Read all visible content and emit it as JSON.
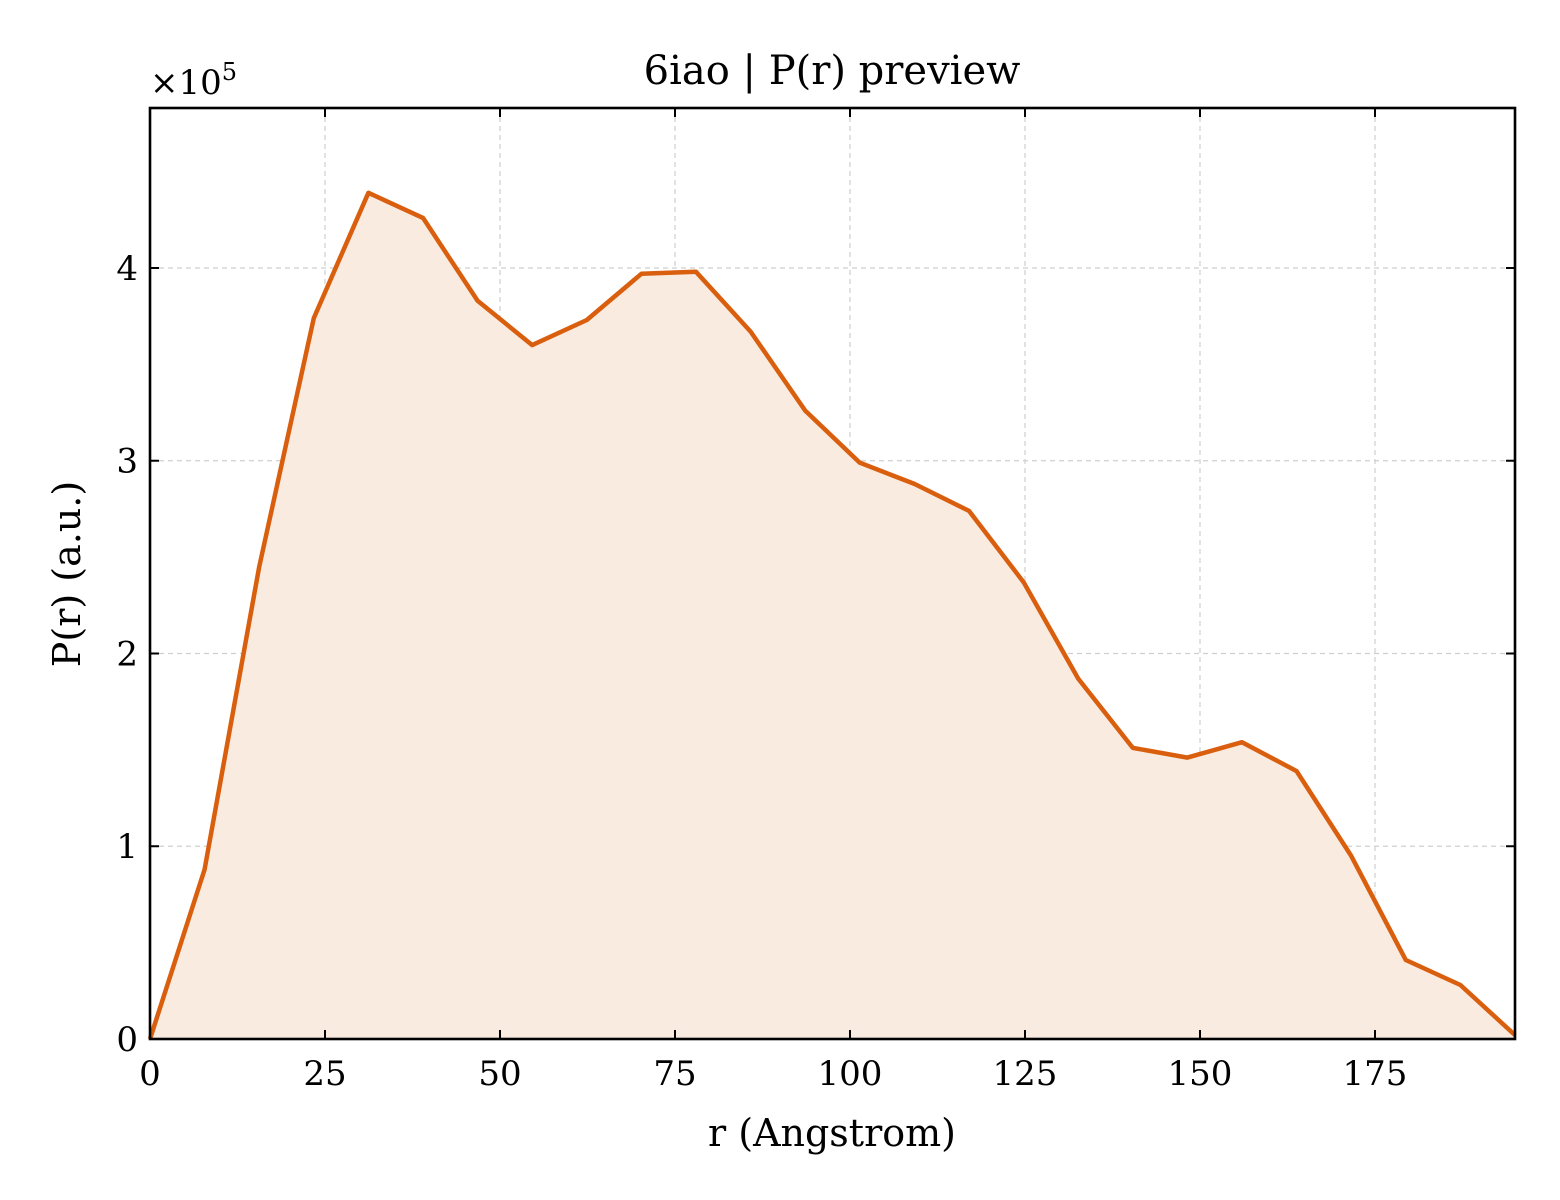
{
  "chart_data": {
    "type": "area",
    "title": "6iao | P(r) preview",
    "xlabel": "r (Angstrom)",
    "ylabel": "P(r) (a.u.)",
    "y_multiplier_label": "×10",
    "y_multiplier_exponent": "5",
    "xlim": [
      0,
      195
    ],
    "ylim": [
      0,
      4.83
    ],
    "x_ticks": [
      0,
      25,
      50,
      75,
      100,
      125,
      150,
      175
    ],
    "x_tick_labels": [
      "0",
      "25",
      "50",
      "75",
      "100",
      "125",
      "150",
      "175"
    ],
    "y_ticks": [
      0,
      1,
      2,
      3,
      4
    ],
    "y_tick_labels": [
      "0",
      "1",
      "2",
      "3",
      "4"
    ],
    "grid": true,
    "colors": {
      "line": "#d95f0e",
      "fill": "#f9ebe0"
    },
    "series": [
      {
        "x": [
          0,
          7.8,
          15.6,
          23.4,
          31.2,
          39.0,
          46.8,
          54.6,
          62.4,
          70.2,
          78.0,
          85.8,
          93.6,
          101.4,
          109.2,
          117.0,
          124.8,
          132.6,
          140.4,
          148.2,
          156.0,
          163.8,
          171.6,
          179.4,
          187.2,
          195.0
        ],
        "y": [
          0,
          0.88,
          2.45,
          3.74,
          4.39,
          4.26,
          3.83,
          3.6,
          3.73,
          3.97,
          3.98,
          3.67,
          3.26,
          2.99,
          2.88,
          2.74,
          2.37,
          1.87,
          1.51,
          1.46,
          1.54,
          1.39,
          0.95,
          0.41,
          0.28,
          0.02
        ]
      }
    ]
  }
}
